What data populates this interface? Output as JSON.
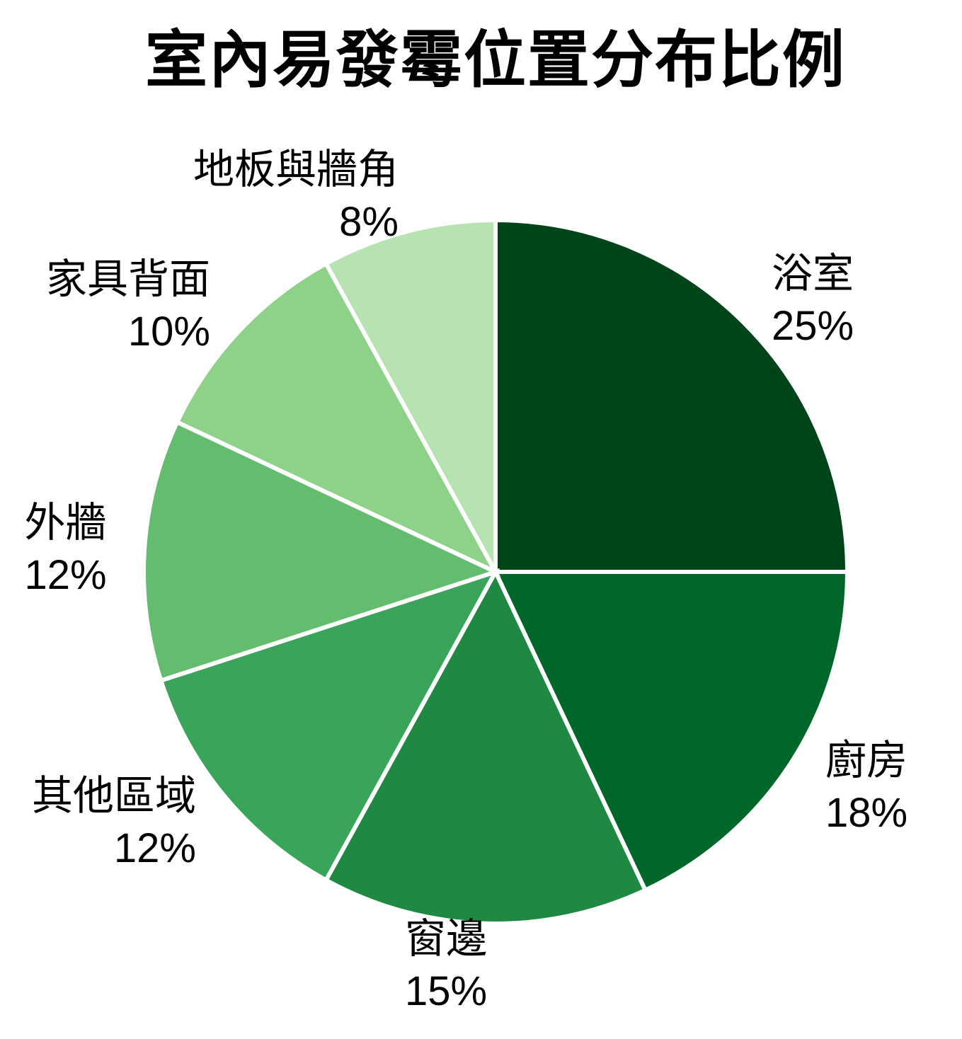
{
  "page": {
    "background": "#ffffff",
    "text_color": "#000000"
  },
  "chart_data": {
    "type": "pie",
    "title": "室內易發霉位置分布比例",
    "direction": "clockwise",
    "start_angle_deg": 0,
    "legend": "none",
    "label_position": "outside",
    "slice_gap_color": "#ffffff",
    "slices": [
      {
        "label": "浴室",
        "value": 25,
        "pct_label": "25%",
        "color": "#004419"
      },
      {
        "label": "廚房",
        "value": 18,
        "pct_label": "18%",
        "color": "#006629"
      },
      {
        "label": "窗邊",
        "value": 15,
        "pct_label": "15%",
        "color": "#1f8843"
      },
      {
        "label": "其他區域",
        "value": 12,
        "pct_label": "12%",
        "color": "#3aa45a"
      },
      {
        "label": "外牆",
        "value": 12,
        "pct_label": "12%",
        "color": "#64bd6f"
      },
      {
        "label": "家具背面",
        "value": 10,
        "pct_label": "10%",
        "color": "#8ed289"
      },
      {
        "label": "地板與牆角",
        "value": 8,
        "pct_label": "8%",
        "color": "#b7e3b2"
      }
    ]
  }
}
